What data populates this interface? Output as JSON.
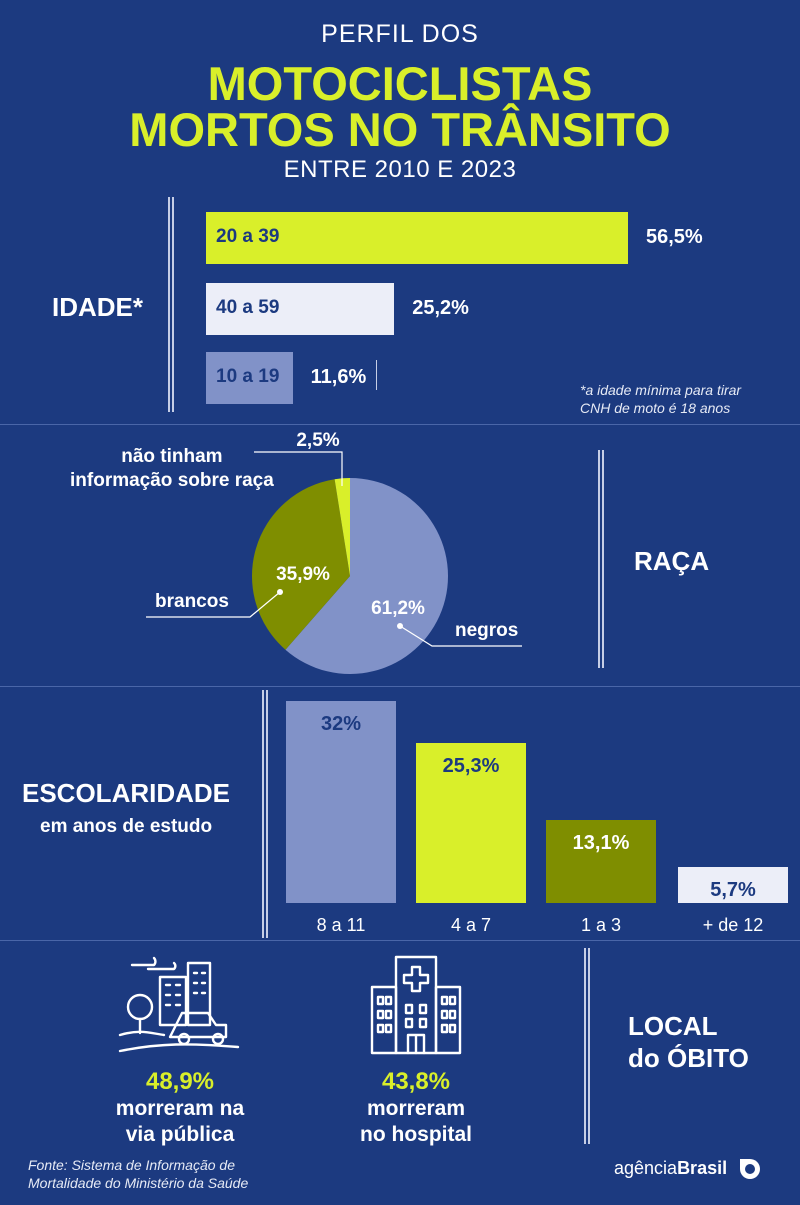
{
  "header": {
    "pre": "PERFIL DOS",
    "line1": "MOTOCICLISTAS",
    "line2": "MORTOS NO TRÂNSITO",
    "period": "ENTRE 2010 E 2023"
  },
  "idade": {
    "label": "IDADE*",
    "note_line1": "*a idade mínima para tirar",
    "note_line2": "CNH de moto é 18 anos"
  },
  "raca": {
    "label": "RAÇA",
    "note_top_line1": "não tinham",
    "note_top_line2": "informação sobre raça"
  },
  "escolaridade": {
    "label": "ESCOLARIDADE",
    "sublabel": "em anos de estudo"
  },
  "local": {
    "label_line1": "LOCAL",
    "label_line2": "do ÓBITO",
    "items": [
      {
        "pct": "48,9%",
        "line1": "morreram na",
        "line2": "via pública"
      },
      {
        "pct": "43,8%",
        "line1": "morreram",
        "line2": "no hospital"
      }
    ]
  },
  "footer": {
    "source_line1": "Fonte:  Sistema de Informação de",
    "source_line2": "Mortalidade do Ministério da Saúde",
    "brand_light": "agência",
    "brand_bold": "Brasil"
  },
  "chart_data": [
    {
      "type": "bar",
      "orientation": "horizontal",
      "categories": [
        "20 a 39",
        "40 a 59",
        "10 a 19"
      ],
      "values": [
        56.5,
        25.2,
        11.6
      ],
      "labels": [
        "56,5%",
        "25,2%",
        "11,6%"
      ],
      "colors": [
        "#d9ef2a",
        "#eceef8",
        "#8192c8"
      ]
    },
    {
      "type": "pie",
      "categories": [
        "negros",
        "brancos",
        "não tinham informação sobre raça"
      ],
      "values": [
        61.2,
        35.9,
        2.5
      ],
      "labels": [
        "61,2%",
        "35,9%",
        "2,5%"
      ],
      "colors": [
        "#8192c8",
        "#7f8e00",
        "#d9ef2a"
      ]
    },
    {
      "type": "bar",
      "orientation": "vertical",
      "categories": [
        "8 a 11",
        "4 a 7",
        "1 a 3",
        "+ de 12"
      ],
      "values": [
        32,
        25.3,
        13.1,
        5.7
      ],
      "labels": [
        "32%",
        "25,3%",
        "13,1%",
        "5,7%"
      ],
      "colors": [
        "#8192c8",
        "#d9ef2a",
        "#7f8e00",
        "#eceef8"
      ],
      "label_colors": [
        "#1c3a80",
        "#1c3a80",
        "#ffffff",
        "#1c3a80"
      ]
    }
  ],
  "icons": [
    "city-car-icon",
    "hospital-icon",
    "agencia-brasil-logo-icon"
  ]
}
